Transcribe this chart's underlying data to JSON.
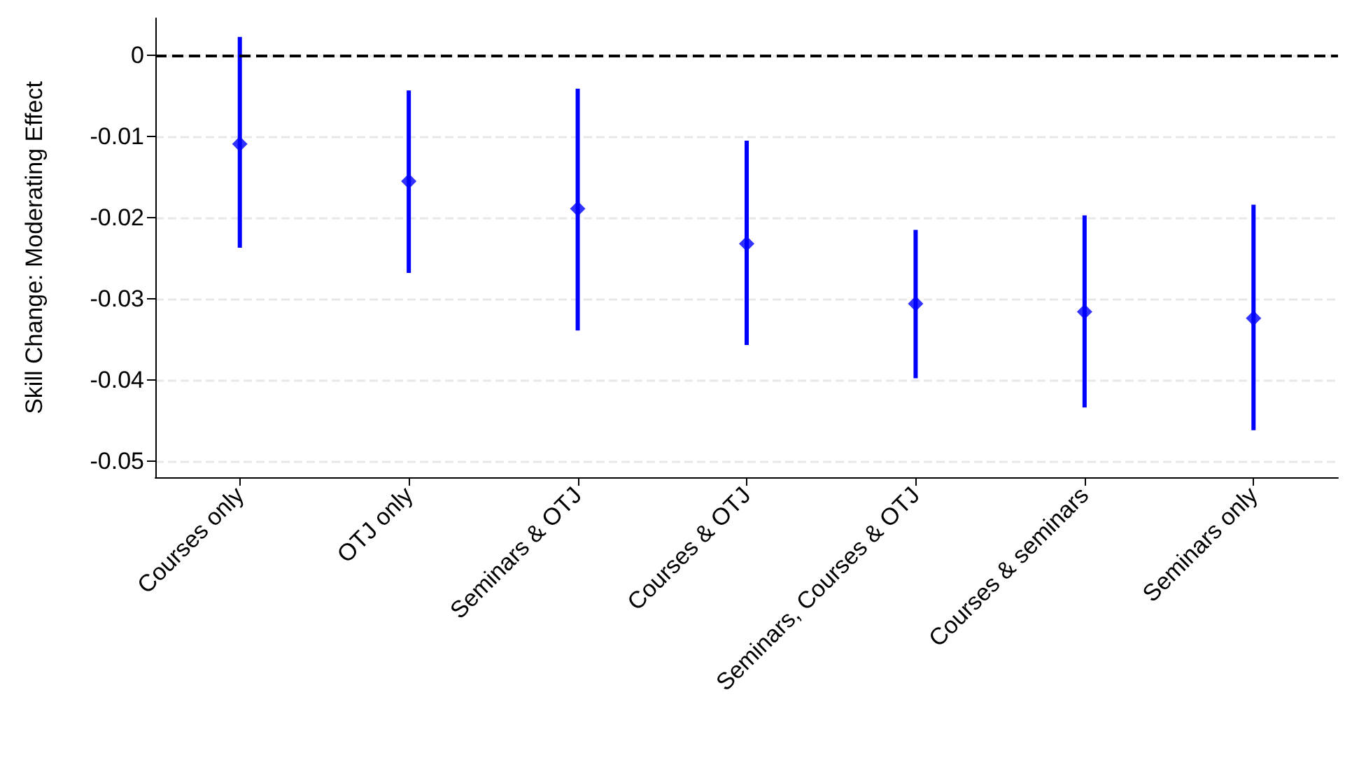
{
  "chart_data": {
    "type": "scatter",
    "ylabel": "Skill Change: Moderating Effect",
    "categories": [
      "Courses only",
      "OTJ only",
      "Seminars & OTJ",
      "Courses & OTJ",
      "Seminars, Courses & OTJ",
      "Courses & seminars",
      "Seminars only"
    ],
    "series": [
      {
        "color": "#0000ff",
        "values": [
          -0.0109,
          -0.0155,
          -0.0189,
          -0.0232,
          -0.0306,
          -0.0316,
          -0.0324
        ],
        "errors": [
          [
            -0.0237,
            0.0023
          ],
          [
            -0.0268,
            -0.0043
          ],
          [
            -0.0339,
            -0.0041
          ],
          [
            -0.0357,
            -0.0105
          ],
          [
            -0.0398,
            -0.0215
          ],
          [
            -0.0434,
            -0.0197
          ],
          [
            -0.0462,
            -0.0184
          ]
        ]
      }
    ],
    "ylim": [
      -0.052,
      0.0046
    ],
    "yticks": [
      -0.05,
      -0.04,
      -0.03,
      -0.02,
      -0.01,
      0
    ],
    "ref_lines": [
      {
        "axis": "y",
        "value": 0,
        "color": "#000000",
        "line_style": "dashed"
      }
    ],
    "grid": "y",
    "marker": "diamond"
  }
}
